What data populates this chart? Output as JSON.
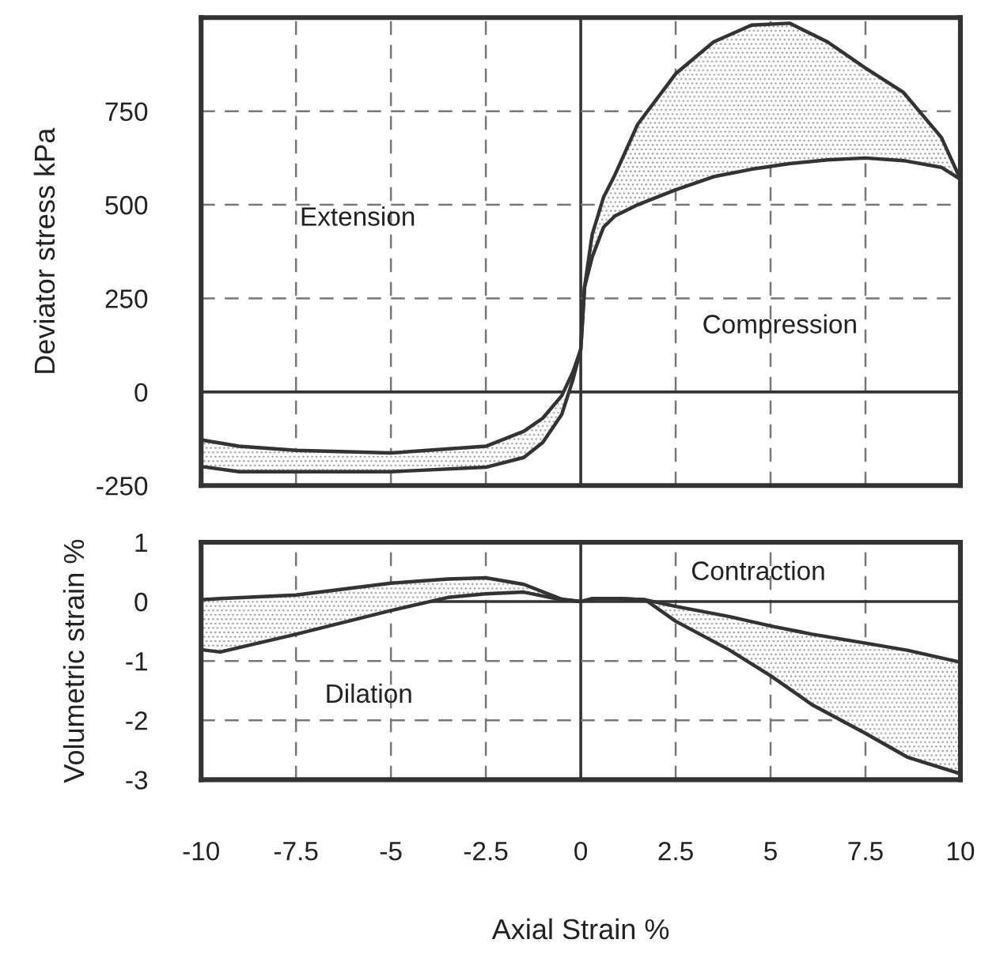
{
  "chart_data": [
    {
      "type": "line",
      "ylabel": "Deviator stress kPa",
      "xlim": [
        -10,
        10
      ],
      "xticks": [
        -10,
        -7.5,
        -5,
        -2.5,
        0,
        2.5,
        5,
        7.5,
        10
      ],
      "ylim": [
        -250,
        1000
      ],
      "yticks": [
        -250,
        0,
        250,
        500,
        750
      ],
      "tick_labels": "y",
      "grid": true,
      "marker": "none",
      "line_style": "solid",
      "series": [
        {
          "color": "#333333",
          "x": [
            -10,
            -9,
            -7.5,
            -5,
            -2.5,
            -1.5,
            -1,
            -0.5,
            -0.2,
            0,
            0.1,
            0.3,
            0.6,
            0.9,
            1.5,
            2.5,
            3.5,
            4.5,
            5.5,
            6.5,
            7.5,
            8.5,
            9.5,
            10
          ],
          "values": [
            -128,
            -145,
            -156,
            -163,
            -145,
            -105,
            -70,
            -10,
            55,
            114,
            280,
            420,
            520,
            580,
            715,
            850,
            935,
            980,
            985,
            935,
            865,
            800,
            680,
            568
          ],
          "lower": [
            -199,
            -213,
            -213,
            -213,
            -201,
            -175,
            -135,
            -60,
            35,
            114,
            280,
            360,
            440,
            470,
            500,
            540,
            575,
            595,
            610,
            620,
            625,
            618,
            600,
            568
          ],
          "upper": [
            -128,
            -145,
            -156,
            -163,
            -145,
            -105,
            -70,
            -10,
            55,
            114,
            280,
            420,
            520,
            580,
            715,
            850,
            935,
            980,
            985,
            935,
            865,
            800,
            680,
            568
          ]
        },
        {
          "color": "#333333",
          "x": [
            -10,
            -9,
            -7.5,
            -5,
            -2.5,
            -1.5,
            -1,
            -0.5,
            -0.2,
            0,
            0.1,
            0.3,
            0.6,
            0.9,
            1.5,
            2.5,
            3.5,
            4.5,
            5.5,
            6.5,
            7.5,
            8.5,
            9.5,
            10
          ],
          "values": [
            -199,
            -213,
            -213,
            -213,
            -201,
            -175,
            -135,
            -60,
            35,
            114,
            280,
            360,
            440,
            470,
            500,
            540,
            575,
            595,
            610,
            620,
            625,
            618,
            600,
            568
          ]
        }
      ],
      "annotations": [
        "Extension",
        "Compression"
      ]
    },
    {
      "type": "line",
      "ylabel": "Volumetric strain %",
      "xlabel": "Axial Strain %",
      "xlim": [
        -10,
        10
      ],
      "xticks": [
        -10,
        -7.5,
        -5,
        -2.5,
        0,
        2.5,
        5,
        7.5,
        10
      ],
      "ylim": [
        -3,
        1
      ],
      "yticks": [
        -3,
        -2,
        -1,
        0,
        1
      ],
      "grid": true,
      "marker": "none",
      "line_style": "solid",
      "series": [
        {
          "color": "#333333",
          "x": [
            -10,
            -9.5,
            -7.5,
            -5,
            -3.5,
            -2.5,
            -1.5,
            -0.5,
            0,
            0.3,
            1,
            1.7,
            2.5,
            3.9,
            5,
            6.1,
            7.5,
            8.6,
            10
          ],
          "values": [
            0.03,
            0.05,
            0.11,
            0.31,
            0.38,
            0.4,
            0.29,
            0.04,
            0,
            0.05,
            0.05,
            0.03,
            -0.08,
            -0.25,
            -0.41,
            -0.55,
            -0.7,
            -0.82,
            -1.02
          ],
          "lower": [
            -0.81,
            -0.85,
            -0.55,
            -0.15,
            0.07,
            0.13,
            0.16,
            0.03,
            0,
            0.05,
            0.05,
            0.03,
            -0.33,
            -0.81,
            -1.25,
            -1.74,
            -2.22,
            -2.62,
            -2.9
          ],
          "upper": [
            0.03,
            0.05,
            0.11,
            0.31,
            0.38,
            0.4,
            0.29,
            0.04,
            0,
            0.05,
            0.05,
            0.03,
            -0.08,
            -0.25,
            -0.41,
            -0.55,
            -0.7,
            -0.82,
            -1.02
          ]
        },
        {
          "color": "#333333",
          "x": [
            -10,
            -9.5,
            -7.5,
            -5,
            -3.5,
            -2.5,
            -1.5,
            -0.5,
            0,
            0.3,
            1,
            1.7,
            2.5,
            3.9,
            5,
            6.1,
            7.5,
            8.6,
            10
          ],
          "values": [
            -0.81,
            -0.85,
            -0.55,
            -0.15,
            0.07,
            0.13,
            0.16,
            0.03,
            0,
            0.05,
            0.05,
            0.03,
            -0.33,
            -0.81,
            -1.25,
            -1.74,
            -2.22,
            -2.62,
            -2.9
          ]
        }
      ],
      "annotations": [
        "Contraction",
        "Dilation"
      ]
    }
  ]
}
